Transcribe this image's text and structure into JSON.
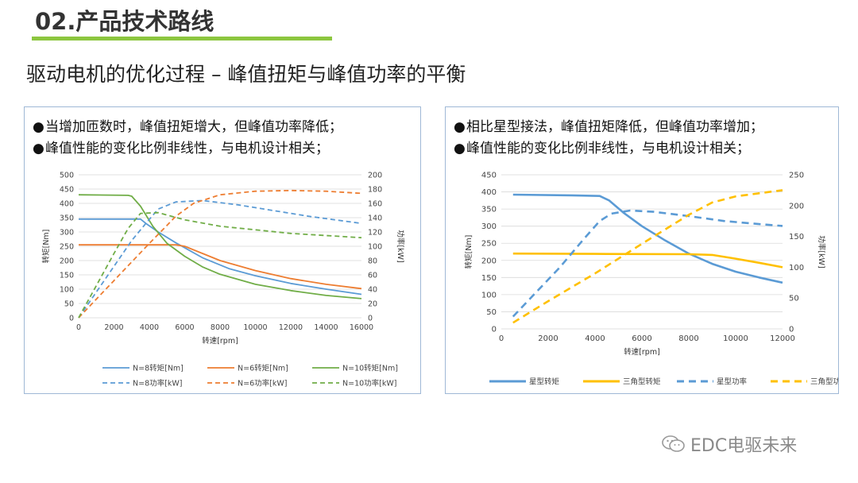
{
  "header": {
    "title": "02.产品技术路线"
  },
  "subtitle": "驱动电机的优化过程 – 峰值扭矩与峰值功率的平衡",
  "left_panel": {
    "bullets": [
      "当增加匝数时，峰值扭矩增大，但峰值功率降低；",
      "峰值性能的变化比例非线性，与电机设计相关；"
    ]
  },
  "right_panel": {
    "bullets": [
      "相比星型接法，峰值扭矩降低，但峰值功率增加；",
      "峰值性能的变化比例非线性，与电机设计相关；"
    ]
  },
  "watermark": "EDC电驱未来",
  "chart_data": [
    {
      "type": "line",
      "x_ticks": [
        0,
        2000,
        4000,
        6000,
        8000,
        10000,
        12000,
        14000,
        16000
      ],
      "xlim": [
        0,
        16000
      ],
      "ylim_left": [
        0,
        500
      ],
      "y_ticks_left": [
        0,
        50,
        100,
        150,
        200,
        250,
        300,
        350,
        400,
        450,
        500
      ],
      "ylim_right": [
        0,
        200
      ],
      "y_ticks_right": [
        0,
        20,
        40,
        60,
        80,
        100,
        120,
        140,
        160,
        180,
        200
      ],
      "xlabel": "转速[rpm]",
      "ylabel_left": "转矩[Nm]",
      "ylabel_right": "功率[kW]",
      "series": [
        {
          "name": "N=8转矩[Nm]",
          "axis": "left",
          "color": "#5b9bd5",
          "dash": false,
          "x": [
            0,
            3500,
            3800,
            4500,
            5500,
            7000,
            8500,
            10000,
            12000,
            14000,
            16000
          ],
          "y": [
            345,
            345,
            330,
            300,
            262,
            210,
            172,
            147,
            120,
            100,
            82
          ]
        },
        {
          "name": "N=6转矩[Nm]",
          "axis": "left",
          "color": "#ed7d31",
          "dash": false,
          "x": [
            0,
            5500,
            6000,
            7000,
            8000,
            10000,
            12000,
            14000,
            16000
          ],
          "y": [
            255,
            255,
            250,
            225,
            200,
            165,
            137,
            117,
            102
          ]
        },
        {
          "name": "N=10转矩[Nm]",
          "axis": "left",
          "color": "#70ad47",
          "dash": false,
          "x": [
            0,
            2800,
            3000,
            3500,
            4200,
            5000,
            6000,
            7000,
            8000,
            10000,
            12000,
            14000,
            16000
          ],
          "y": [
            430,
            428,
            425,
            390,
            320,
            260,
            215,
            178,
            152,
            117,
            95,
            78,
            67
          ]
        },
        {
          "name": "N=8功率[kW]",
          "axis": "right",
          "color": "#5b9bd5",
          "dash": true,
          "x": [
            0,
            1000,
            2000,
            3000,
            3800,
            4500,
            5500,
            7000,
            9000,
            11000,
            13000,
            16000
          ],
          "y": [
            0,
            36,
            72,
            108,
            132,
            152,
            162,
            164,
            158,
            150,
            142,
            132
          ]
        },
        {
          "name": "N=6功率[kW]",
          "axis": "right",
          "color": "#ed7d31",
          "dash": true,
          "x": [
            0,
            2000,
            4000,
            5500,
            6500,
            8000,
            10000,
            12000,
            14000,
            16000
          ],
          "y": [
            0,
            52,
            104,
            142,
            160,
            172,
            177,
            178,
            177,
            174
          ]
        },
        {
          "name": "N=10功率[kW]",
          "axis": "right",
          "color": "#70ad47",
          "dash": true,
          "x": [
            0,
            1000,
            2000,
            2800,
            3500,
            4500,
            6000,
            8000,
            10000,
            12000,
            14000,
            16000
          ],
          "y": [
            0,
            45,
            90,
            125,
            146,
            147,
            137,
            128,
            123,
            118,
            115,
            112
          ]
        }
      ]
    },
    {
      "type": "line",
      "x_ticks": [
        0,
        2000,
        4000,
        6000,
        8000,
        10000,
        12000
      ],
      "xlim": [
        0,
        12000
      ],
      "ylim_left": [
        0,
        450
      ],
      "y_ticks_left": [
        0,
        50,
        100,
        150,
        200,
        250,
        300,
        350,
        400,
        450
      ],
      "ylim_right": [
        0,
        250
      ],
      "y_ticks_right": [
        0,
        50,
        100,
        150,
        200,
        250
      ],
      "xlabel": "转速[rpm]",
      "ylabel_left": "转矩[Nm]",
      "ylabel_right": "功率[kW]",
      "series": [
        {
          "name": "星型转矩",
          "axis": "left",
          "color": "#5b9bd5",
          "dash": false,
          "x": [
            500,
            3000,
            4200,
            4600,
            5200,
            6000,
            7000,
            8000,
            9000,
            10000,
            11000,
            12000
          ],
          "y": [
            392,
            390,
            388,
            375,
            340,
            300,
            258,
            220,
            190,
            167,
            150,
            135
          ]
        },
        {
          "name": "三角型转矩",
          "axis": "left",
          "color": "#ffc000",
          "dash": false,
          "x": [
            500,
            4000,
            8000,
            9000,
            10000,
            11000,
            12000
          ],
          "y": [
            220,
            219,
            218,
            216,
            205,
            193,
            180
          ]
        },
        {
          "name": "星型功率",
          "axis": "right",
          "color": "#5b9bd5",
          "dash": true,
          "x": [
            500,
            1500,
            2500,
            3500,
            4200,
            4700,
            5500,
            6500,
            8000,
            9500,
            11000,
            12000
          ],
          "y": [
            20,
            60,
            100,
            145,
            175,
            187,
            192,
            190,
            183,
            175,
            170,
            167
          ]
        },
        {
          "name": "三角型功率",
          "axis": "right",
          "color": "#ffc000",
          "dash": true,
          "x": [
            500,
            2000,
            4000,
            6000,
            8000,
            9000,
            10000,
            11000,
            12000
          ],
          "y": [
            10,
            45,
            90,
            138,
            185,
            205,
            215,
            220,
            225
          ]
        }
      ]
    }
  ]
}
